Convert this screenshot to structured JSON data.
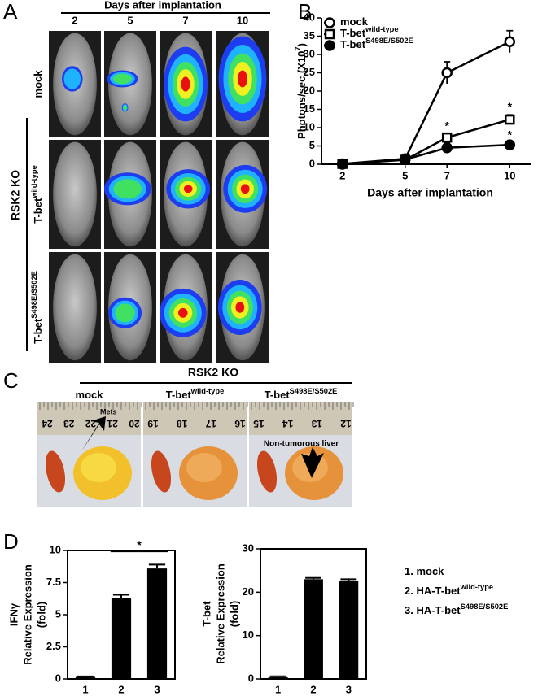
{
  "panel_a": {
    "letter": "A",
    "header": "Days after implantation",
    "days": [
      "2",
      "5",
      "7",
      "10"
    ],
    "group_label": "RSK2 KO",
    "rows": [
      {
        "name": "mock"
      },
      {
        "name": "T-bet",
        "sup": "wild-type"
      },
      {
        "name": "T-bet",
        "sup": "S498E/S502E"
      }
    ]
  },
  "panel_c": {
    "letter": "C",
    "group_label": "RSK2 KO",
    "columns": [
      {
        "name": "mock"
      },
      {
        "name": "T-bet",
        "sup": "wild-type"
      },
      {
        "name": "T-bet",
        "sup": "S498E/S502E"
      }
    ],
    "ruler_numbers": [
      [
        "24",
        "23",
        "22",
        "21",
        "20"
      ],
      [
        "19",
        "18",
        "17",
        "16"
      ],
      [
        "15",
        "14",
        "13",
        "12"
      ]
    ],
    "annotations": [
      "Mets",
      "Non-tumorous liver"
    ]
  },
  "panel_d": {
    "letter": "D",
    "legend": [
      {
        "text": "1. mock"
      },
      {
        "text": "2. HA-T-bet",
        "sup": "wild-type"
      },
      {
        "text": "3. HA-T-bet",
        "sup": "S498E/S502E"
      }
    ]
  },
  "chart_data": [
    {
      "type": "line",
      "panel_label": "B",
      "x": [
        2,
        5,
        7,
        10
      ],
      "xlim": [
        1,
        11
      ],
      "xticks": [
        2,
        5,
        7,
        10
      ],
      "ylim": [
        0,
        40
      ],
      "yticks": [
        0,
        5,
        10,
        15,
        20,
        25,
        30,
        35,
        40
      ],
      "xlabel": "Days after implantation",
      "ylabel": {
        "text": "Photons/sec (X10",
        "sup": "7",
        "end": ")"
      },
      "legend": "upper left",
      "series": [
        {
          "name": "mock",
          "marker": "open-circle",
          "color": "#000000",
          "values": [
            0.1,
            1.5,
            25,
            33.5
          ],
          "errors": [
            0.2,
            0.3,
            3,
            3
          ]
        },
        {
          "name": "T-bet",
          "name_sup": "wild-type",
          "marker": "open-square",
          "color": "#000000",
          "values": [
            0.1,
            1.2,
            7.3,
            12.2
          ],
          "errors": [
            0.2,
            0.2,
            1,
            1.3
          ]
        },
        {
          "name": "T-bet",
          "name_sup": "S498E/S502E",
          "marker": "filled-circle",
          "color": "#000000",
          "values": [
            0,
            1.3,
            4.5,
            5.3
          ],
          "errors": [
            0.2,
            0.2,
            1.5,
            0.5
          ]
        }
      ],
      "annotations": [
        {
          "text": "*",
          "series": 1,
          "index": 2
        },
        {
          "text": "*",
          "series": 1,
          "index": 3
        },
        {
          "text": "*",
          "series": 2,
          "index": 3
        }
      ]
    },
    {
      "type": "bar",
      "categories": [
        "1",
        "2",
        "3"
      ],
      "values": [
        0.15,
        6.3,
        8.6
      ],
      "errors": [
        0.05,
        0.25,
        0.3
      ],
      "ylim": [
        0,
        10
      ],
      "yticks": [
        0,
        2.5,
        5,
        7.5,
        10
      ],
      "ylabel": [
        "IFNγ",
        "Relative Expression",
        "(fold)"
      ],
      "color": "#000000",
      "significance": {
        "text": "*",
        "from": 1,
        "to": 2
      }
    },
    {
      "type": "bar",
      "categories": [
        "1",
        "2",
        "3"
      ],
      "values": [
        0.4,
        23,
        22.5
      ],
      "errors": [
        0.2,
        0.3,
        0.5
      ],
      "ylim": [
        0,
        30
      ],
      "yticks": [
        0,
        10,
        20,
        30
      ],
      "ylabel": [
        "T-bet",
        "Relative Expression",
        "(fold)"
      ],
      "color": "#000000"
    }
  ]
}
